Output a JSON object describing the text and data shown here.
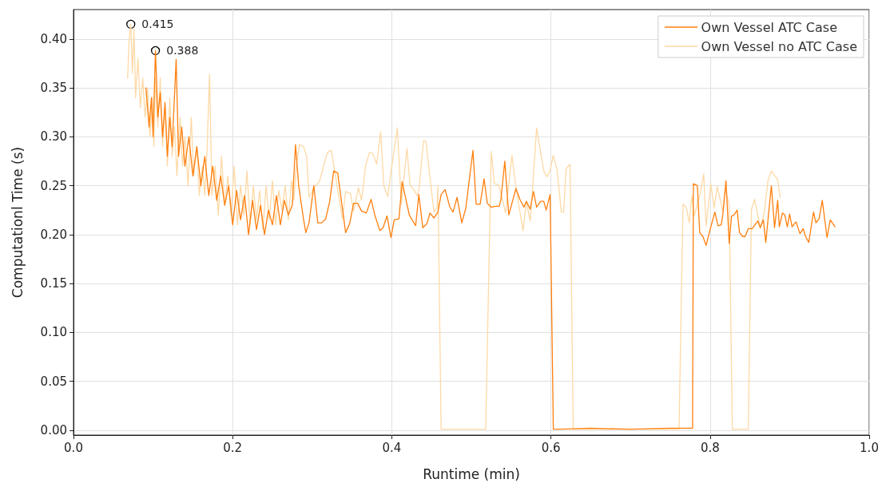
{
  "chart_data": {
    "type": "line",
    "xlabel": "Runtime (min)",
    "ylabel": "Computationl Time (s)",
    "xlim": [
      0,
      1.0
    ],
    "xticks": [
      {
        "value": 0,
        "label": "0.0"
      },
      0.2,
      0.4,
      0.6,
      0.8,
      {
        "value": 1,
        "label": "1.0"
      }
    ],
    "ylim": [
      -0.005,
      0.43
    ],
    "yticks": [
      {
        "value": 0,
        "label": "0.00"
      },
      0.05,
      {
        "value": 0.1,
        "label": "0.10"
      },
      0.15,
      {
        "value": 0.2,
        "label": "0.20"
      },
      0.25,
      {
        "value": 0.3,
        "label": "0.30"
      },
      0.35,
      {
        "value": 0.4,
        "label": "0.40"
      }
    ],
    "grid": true,
    "legend": "top right",
    "marker": "none",
    "line_style": "solid",
    "annotations": [
      {
        "text": "0.415",
        "x": 0.072,
        "y": 0.415
      },
      {
        "text": "0.388",
        "x": 0.103,
        "y": 0.388
      }
    ],
    "series": [
      {
        "name": "Own Vessel ATC Case",
        "color": "#ff7f0e",
        "x": [
          0.091,
          0.095,
          0.098,
          0.1,
          0.103,
          0.106,
          0.109,
          0.112,
          0.115,
          0.118,
          0.121,
          0.124,
          0.129,
          0.132,
          0.136,
          0.14,
          0.145,
          0.15,
          0.155,
          0.16,
          0.165,
          0.17,
          0.175,
          0.18,
          0.185,
          0.19,
          0.195,
          0.2,
          0.205,
          0.21,
          0.215,
          0.22,
          0.225,
          0.23,
          0.235,
          0.24,
          0.245,
          0.25,
          0.255,
          0.26,
          0.265,
          0.27,
          0.275,
          0.279,
          0.283,
          0.289,
          0.292,
          0.296,
          0.302,
          0.307,
          0.312,
          0.317,
          0.322,
          0.327,
          0.332,
          0.342,
          0.347,
          0.352,
          0.357,
          0.362,
          0.368,
          0.374,
          0.379,
          0.385,
          0.389,
          0.394,
          0.399,
          0.403,
          0.409,
          0.413,
          0.422,
          0.43,
          0.434,
          0.439,
          0.444,
          0.448,
          0.453,
          0.458,
          0.462,
          0.467,
          0.473,
          0.477,
          0.482,
          0.488,
          0.493,
          0.502,
          0.506,
          0.511,
          0.516,
          0.52,
          0.525,
          0.53,
          0.535,
          0.537,
          0.542,
          0.547,
          0.556,
          0.561,
          0.566,
          0.569,
          0.574,
          0.578,
          0.582,
          0.587,
          0.591,
          0.594,
          0.599,
          0.603,
          0.61,
          0.65,
          0.7,
          0.75,
          0.778,
          0.779,
          0.784,
          0.787,
          0.791,
          0.795,
          0.799,
          0.806,
          0.81,
          0.814,
          0.816,
          0.82,
          0.824,
          0.827,
          0.83,
          0.834,
          0.837,
          0.841,
          0.844,
          0.848,
          0.853,
          0.86,
          0.863,
          0.867,
          0.87,
          0.877,
          0.881,
          0.885,
          0.887,
          0.891,
          0.894,
          0.897,
          0.9,
          0.903,
          0.908,
          0.913,
          0.917,
          0.92,
          0.924,
          0.93,
          0.933,
          0.937,
          0.941,
          0.947,
          0.951,
          0.957
        ],
        "values": [
          0.35,
          0.31,
          0.34,
          0.3,
          0.388,
          0.32,
          0.345,
          0.3,
          0.335,
          0.28,
          0.32,
          0.29,
          0.379,
          0.28,
          0.31,
          0.27,
          0.3,
          0.26,
          0.29,
          0.25,
          0.28,
          0.24,
          0.27,
          0.235,
          0.26,
          0.23,
          0.25,
          0.21,
          0.245,
          0.215,
          0.24,
          0.2,
          0.235,
          0.205,
          0.23,
          0.2,
          0.225,
          0.21,
          0.24,
          0.21,
          0.235,
          0.22,
          0.23,
          0.292,
          0.25,
          0.216,
          0.202,
          0.212,
          0.25,
          0.212,
          0.212,
          0.216,
          0.234,
          0.265,
          0.263,
          0.202,
          0.211,
          0.232,
          0.232,
          0.224,
          0.222,
          0.236,
          0.219,
          0.204,
          0.207,
          0.219,
          0.197,
          0.215,
          0.216,
          0.254,
          0.22,
          0.209,
          0.241,
          0.207,
          0.211,
          0.222,
          0.217,
          0.223,
          0.241,
          0.246,
          0.228,
          0.223,
          0.238,
          0.212,
          0.227,
          0.286,
          0.231,
          0.231,
          0.257,
          0.232,
          0.228,
          0.229,
          0.229,
          0.235,
          0.275,
          0.22,
          0.247,
          0.236,
          0.228,
          0.234,
          0.226,
          0.244,
          0.228,
          0.234,
          0.234,
          0.225,
          0.241,
          0.001,
          0.001,
          0.002,
          0.001,
          0.002,
          0.002,
          0.252,
          0.25,
          0.202,
          0.198,
          0.189,
          0.202,
          0.223,
          0.209,
          0.21,
          0.22,
          0.255,
          0.191,
          0.219,
          0.22,
          0.225,
          0.202,
          0.198,
          0.198,
          0.206,
          0.206,
          0.214,
          0.207,
          0.215,
          0.192,
          0.25,
          0.207,
          0.235,
          0.208,
          0.222,
          0.22,
          0.208,
          0.221,
          0.208,
          0.213,
          0.201,
          0.206,
          0.198,
          0.192,
          0.223,
          0.212,
          0.216,
          0.235,
          0.197,
          0.215,
          0.208
        ]
      },
      {
        "name": "Own Vessel no ATC Case",
        "color": "#fdd9a6",
        "x": [
          0.068,
          0.07,
          0.072,
          0.074,
          0.076,
          0.078,
          0.081,
          0.084,
          0.087,
          0.09,
          0.093,
          0.096,
          0.099,
          0.101,
          0.103,
          0.106,
          0.109,
          0.112,
          0.115,
          0.118,
          0.121,
          0.124,
          0.127,
          0.13,
          0.134,
          0.137,
          0.14,
          0.144,
          0.148,
          0.151,
          0.155,
          0.158,
          0.162,
          0.165,
          0.168,
          0.171,
          0.174,
          0.178,
          0.182,
          0.186,
          0.19,
          0.194,
          0.198,
          0.202,
          0.206,
          0.21,
          0.214,
          0.218,
          0.222,
          0.226,
          0.23,
          0.234,
          0.238,
          0.242,
          0.246,
          0.25,
          0.254,
          0.258,
          0.262,
          0.266,
          0.27,
          0.274,
          0.277,
          0.28,
          0.284,
          0.289,
          0.293,
          0.296,
          0.302,
          0.309,
          0.319,
          0.324,
          0.332,
          0.338,
          0.342,
          0.348,
          0.352,
          0.358,
          0.362,
          0.367,
          0.372,
          0.376,
          0.381,
          0.386,
          0.39,
          0.395,
          0.4,
          0.407,
          0.412,
          0.419,
          0.423,
          0.426,
          0.432,
          0.434,
          0.44,
          0.443,
          0.448,
          0.453,
          0.457,
          0.458,
          0.462,
          0.49,
          0.518,
          0.525,
          0.529,
          0.534,
          0.538,
          0.543,
          0.551,
          0.556,
          0.565,
          0.569,
          0.574,
          0.578,
          0.582,
          0.587,
          0.591,
          0.595,
          0.599,
          0.603,
          0.608,
          0.613,
          0.616,
          0.619,
          0.624,
          0.628,
          0.68,
          0.73,
          0.761,
          0.766,
          0.77,
          0.774,
          0.777,
          0.78,
          0.787,
          0.792,
          0.795,
          0.801,
          0.805,
          0.809,
          0.816,
          0.819,
          0.824,
          0.828,
          0.848,
          0.852,
          0.856,
          0.863,
          0.868,
          0.873,
          0.877,
          0.885,
          0.888
        ],
        "values": [
          0.36,
          0.4,
          0.415,
          0.365,
          0.41,
          0.34,
          0.38,
          0.33,
          0.36,
          0.32,
          0.35,
          0.3,
          0.34,
          0.29,
          0.36,
          0.31,
          0.36,
          0.29,
          0.33,
          0.27,
          0.34,
          0.28,
          0.31,
          0.26,
          0.32,
          0.27,
          0.3,
          0.25,
          0.32,
          0.26,
          0.29,
          0.24,
          0.27,
          0.24,
          0.29,
          0.364,
          0.24,
          0.27,
          0.22,
          0.28,
          0.23,
          0.26,
          0.22,
          0.27,
          0.21,
          0.25,
          0.22,
          0.265,
          0.21,
          0.25,
          0.215,
          0.245,
          0.205,
          0.25,
          0.215,
          0.255,
          0.21,
          0.245,
          0.225,
          0.25,
          0.215,
          0.255,
          0.235,
          0.27,
          0.292,
          0.29,
          0.28,
          0.238,
          0.248,
          0.254,
          0.284,
          0.286,
          0.246,
          0.216,
          0.244,
          0.242,
          0.224,
          0.248,
          0.235,
          0.27,
          0.284,
          0.283,
          0.272,
          0.305,
          0.25,
          0.239,
          0.27,
          0.309,
          0.231,
          0.288,
          0.25,
          0.248,
          0.24,
          0.246,
          0.296,
          0.295,
          0.258,
          0.223,
          0.228,
          0.25,
          0.001,
          0.001,
          0.001,
          0.285,
          0.252,
          0.251,
          0.24,
          0.222,
          0.281,
          0.248,
          0.204,
          0.234,
          0.214,
          0.26,
          0.309,
          0.284,
          0.265,
          0.259,
          0.266,
          0.281,
          0.265,
          0.223,
          0.223,
          0.267,
          0.272,
          0.001,
          null,
          null,
          0.001,
          0.231,
          0.228,
          0.212,
          0.24,
          0.219,
          0.24,
          0.262,
          0.209,
          0.252,
          0.227,
          0.249,
          0.224,
          0.246,
          0.231,
          0.001,
          0.001,
          0.226,
          0.236,
          0.207,
          0.222,
          0.256,
          0.265,
          0.256,
          0.238
        ]
      }
    ]
  }
}
